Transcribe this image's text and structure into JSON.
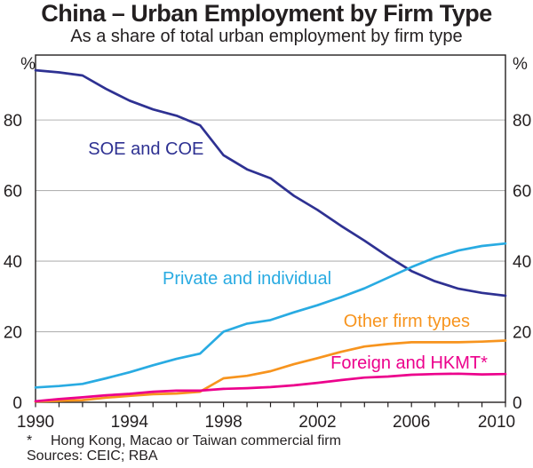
{
  "header": {
    "title": "China – Urban Employment by Firm Type",
    "subtitle": "As a share of total urban employment by firm type"
  },
  "footer": {
    "footnote_marker": "*",
    "footnote_text": "Hong Kong, Macao or Taiwan commercial firm",
    "sources": "Sources: CEIC; RBA"
  },
  "chart_data": {
    "type": "line",
    "title": "China – Urban Employment by Firm Type",
    "subtitle": "As a share of total urban employment by firm type",
    "unit_left": "%",
    "unit_right": "%",
    "grid": "horizontal",
    "legend": "inline-labels",
    "axis_color": "#231f20",
    "grid_color": "#b3b3b3",
    "xlim": [
      1990,
      2010
    ],
    "ylim": [
      0,
      98.4
    ],
    "yticks": [
      0,
      20,
      40,
      60,
      80
    ],
    "xtick_label_years": [
      1990,
      1994,
      1998,
      2002,
      2006,
      2010
    ],
    "minor_tick_every_years": 1,
    "x": [
      1990,
      1991,
      1992,
      1993,
      1994,
      1995,
      1996,
      1997,
      1998,
      1999,
      2000,
      2001,
      2002,
      2003,
      2004,
      2005,
      2006,
      2007,
      2008,
      2009,
      2010
    ],
    "series": [
      {
        "name": "SOE and COE",
        "color": "#2e3192",
        "values": [
          94.1,
          93.5,
          92.6,
          88.8,
          85.5,
          83.0,
          81.2,
          78.5,
          70.0,
          66.0,
          63.5,
          58.5,
          54.5,
          50.0,
          45.8,
          41.3,
          37.2,
          34.3,
          32.2,
          31.0,
          30.2
        ],
        "label_anchor": {
          "year": 1994.7,
          "value": 72.0
        }
      },
      {
        "name": "Private and individual",
        "color": "#29abe2",
        "values": [
          4.2,
          4.6,
          5.2,
          6.8,
          8.5,
          10.5,
          12.3,
          13.8,
          20.0,
          22.3,
          23.3,
          25.5,
          27.5,
          29.8,
          32.3,
          35.3,
          38.3,
          41.0,
          43.0,
          44.3,
          45.0
        ],
        "label_anchor": {
          "year": 1999.0,
          "value": 35.2
        }
      },
      {
        "name": "Other firm types",
        "color": "#f7941e",
        "values": [
          0.2,
          0.4,
          0.6,
          1.3,
          1.8,
          2.3,
          2.5,
          3.0,
          6.8,
          7.5,
          8.8,
          10.8,
          12.5,
          14.3,
          15.8,
          16.5,
          17.0,
          17.0,
          17.0,
          17.2,
          17.5
        ],
        "label_anchor": {
          "year": 2005.8,
          "value": 23.2
        }
      },
      {
        "name": "Foreign and HKMT*",
        "color": "#ec008c",
        "values": [
          0.3,
          0.9,
          1.4,
          2.0,
          2.4,
          3.0,
          3.3,
          3.3,
          3.8,
          4.0,
          4.3,
          4.8,
          5.5,
          6.3,
          7.0,
          7.3,
          7.8,
          8.0,
          8.1,
          7.9,
          8.0
        ],
        "label_anchor": {
          "year": 2005.9,
          "value": 11.3
        }
      }
    ]
  }
}
